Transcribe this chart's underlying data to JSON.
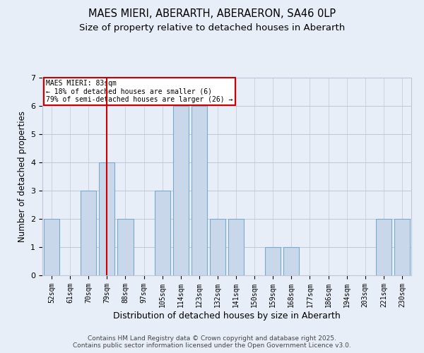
{
  "title": "MAES MIERI, ABERARTH, ABERAERON, SA46 0LP",
  "subtitle": "Size of property relative to detached houses in Aberarth",
  "xlabel": "Distribution of detached houses by size in Aberarth",
  "ylabel": "Number of detached properties",
  "footer_line1": "Contains HM Land Registry data © Crown copyright and database right 2025.",
  "footer_line2": "Contains public sector information licensed under the Open Government Licence v3.0.",
  "categories": [
    "52sqm",
    "61sqm",
    "70sqm",
    "79sqm",
    "88sqm",
    "97sqm",
    "105sqm",
    "114sqm",
    "123sqm",
    "132sqm",
    "141sqm",
    "150sqm",
    "159sqm",
    "168sqm",
    "177sqm",
    "186sqm",
    "194sqm",
    "203sqm",
    "221sqm",
    "230sqm"
  ],
  "values": [
    2,
    0,
    3,
    4,
    2,
    0,
    3,
    6,
    6,
    2,
    2,
    0,
    1,
    1,
    0,
    0,
    0,
    0,
    2,
    2
  ],
  "bar_color": "#c8d8ea",
  "bar_edge_color": "#7aaac8",
  "vline_color": "#cc0000",
  "vline_x": 3.5,
  "annotation_text": "MAES MIERI: 83sqm\n← 18% of detached houses are smaller (6)\n79% of semi-detached houses are larger (26) →",
  "annotation_box_color": "#ffffff",
  "annotation_box_edge": "#cc0000",
  "ylim": [
    0,
    7
  ],
  "yticks": [
    0,
    1,
    2,
    3,
    4,
    5,
    6,
    7
  ],
  "bg_color": "#e8eef8",
  "plot_bg_color": "#e8eef8",
  "grid_color": "#c0c8d8",
  "title_fontsize": 10.5,
  "subtitle_fontsize": 9.5,
  "xlabel_fontsize": 9,
  "ylabel_fontsize": 8.5,
  "tick_fontsize": 7,
  "footer_fontsize": 6.5
}
